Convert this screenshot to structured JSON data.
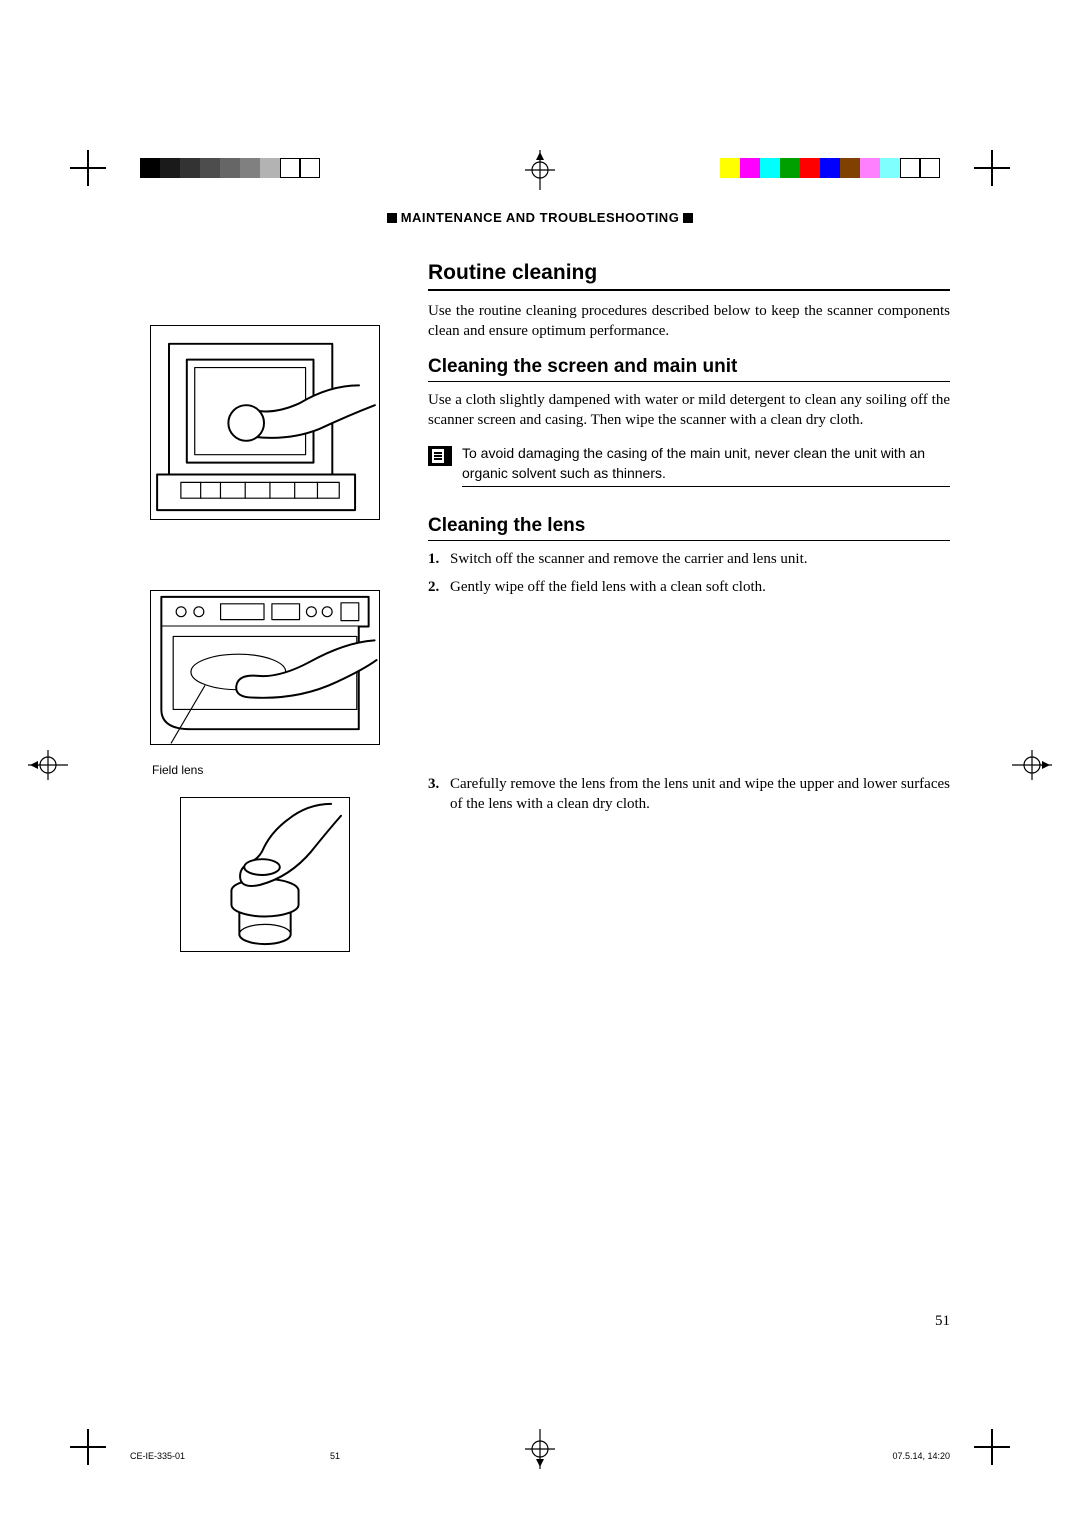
{
  "header": {
    "label": "MAINTENANCE AND TROUBLESHOOTING"
  },
  "section1": {
    "title": "Routine cleaning",
    "intro": "Use the routine cleaning procedures described below to keep the scanner components clean and ensure optimum performance."
  },
  "section2": {
    "title": "Cleaning the screen and main unit",
    "body": "Use a cloth slightly dampened with water or mild detergent to clean any soiling off the scanner screen and casing. Then wipe the scanner with a clean dry cloth.",
    "note": "To avoid damaging the casing of the main unit, never clean the unit with an organic solvent such as thinners."
  },
  "section3": {
    "title": "Cleaning the lens",
    "steps": [
      "Switch off the scanner and remove the carrier and lens unit.",
      "Gently wipe off the field lens with a clean soft cloth.",
      "Carefully remove the lens from the lens unit and wipe the upper and lower surfaces of the lens with a clean dry cloth."
    ]
  },
  "fig2_label": "Field lens",
  "page_number": "51",
  "footer": {
    "doc_id": "CE-IE-335-01",
    "page_ref": "51",
    "timestamp": "07.5.14, 14:20"
  },
  "calibration": {
    "grayscale": [
      "#000000",
      "#1a1a1a",
      "#333333",
      "#4d4d4d",
      "#666666",
      "#808080",
      "#b3b3b3",
      "#ffffff",
      "#ffffff"
    ],
    "color_bar": [
      "#ffff00",
      "#ff00ff",
      "#00ffff",
      "#00a000",
      "#ff0000",
      "#0000ff",
      "#804000",
      "#ff80ff",
      "#80ffff",
      "#ffffff",
      "#ffffff"
    ],
    "grayscale_borders": [
      false,
      false,
      false,
      false,
      false,
      false,
      false,
      true,
      true
    ],
    "color_borders": [
      false,
      false,
      false,
      false,
      false,
      false,
      false,
      false,
      false,
      true,
      true
    ]
  }
}
